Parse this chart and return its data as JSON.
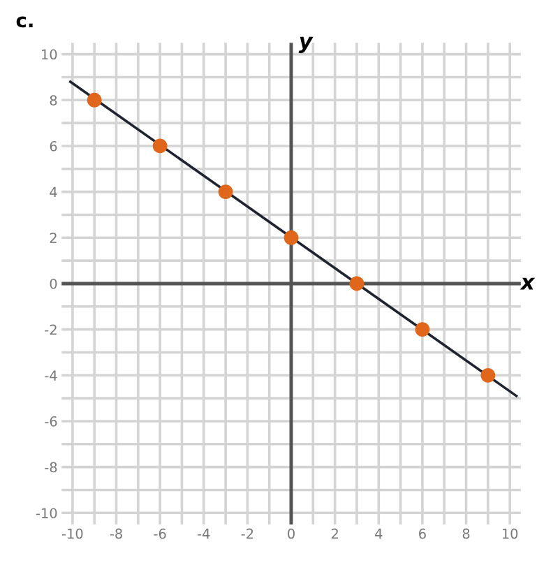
{
  "chart_data": {
    "type": "scatter",
    "title": "c.",
    "xlabel": "x",
    "ylabel": "y",
    "xlim": [
      -10.5,
      10.5
    ],
    "ylim": [
      -10.5,
      10.5
    ],
    "xticks": [
      -10,
      -8,
      -6,
      -4,
      -2,
      0,
      2,
      4,
      6,
      8,
      10
    ],
    "yticks": [
      -10,
      -8,
      -6,
      -4,
      -2,
      0,
      2,
      4,
      6,
      8,
      10
    ],
    "grid": true,
    "marker": "circle",
    "series": [
      {
        "type": "line",
        "color": "#1f2430",
        "x": [
          -10.1,
          10.3
        ],
        "values": [
          8.8,
          -4.9
        ],
        "marker": "none"
      },
      {
        "color": "#e0661c",
        "x": [
          -9,
          -6,
          -3,
          0,
          3,
          6,
          9
        ],
        "values": [
          8,
          6,
          4,
          2,
          0,
          -2,
          -4
        ]
      }
    ]
  }
}
